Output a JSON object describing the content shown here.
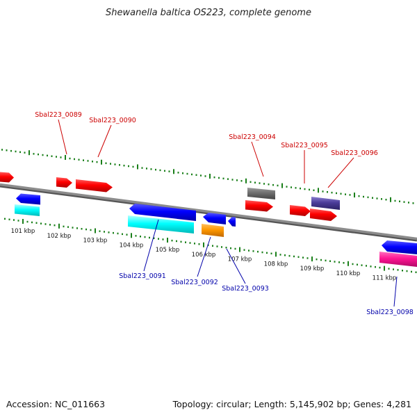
{
  "title": "Shewanella baltica OS223, complete genome",
  "footer": {
    "accession": "Accession: NC_011663",
    "summary": "Topology: circular; Length: 5,145,902 bp; Genes: 4,281"
  },
  "colors": {
    "backbone": "#8c8c8c",
    "ruler": "#1a7f1a",
    "forward_label": "#cc0000",
    "reverse_label": "#0000aa"
  },
  "ruler_labels": [
    "101 kbp",
    "102 kbp",
    "103 kbp",
    "104 kbp",
    "105 kbp",
    "106 kbp",
    "107 kbp",
    "108 kbp",
    "109 kbp",
    "110 kbp",
    "111 kbp"
  ],
  "gene_labels": {
    "forward": [
      "Sbal223_0089",
      "Sbal223_0090",
      "Sbal223_0094",
      "Sbal223_0095",
      "Sbal223_0096"
    ],
    "reverse": [
      "Sbal223_0091",
      "Sbal223_0092",
      "Sbal223_0093",
      "Sbal223_0098"
    ]
  }
}
